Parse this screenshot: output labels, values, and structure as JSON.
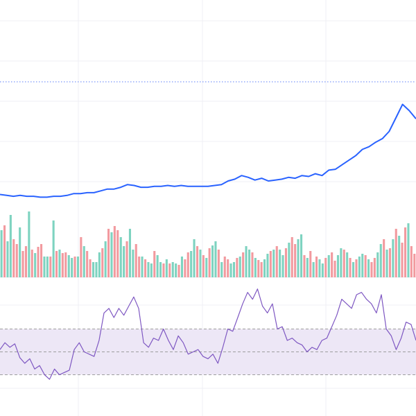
{
  "colors": {
    "background": "#ffffff",
    "grid": "#efeff4",
    "price_line": "#2962ff",
    "reference_line": "#5c7cfa",
    "volume_up": "#7ed3c0",
    "volume_down": "#f29a9f",
    "rsi_line": "#7e57c2",
    "rsi_band": "#ede7f6",
    "rsi_band_border": "#9e9e9e"
  },
  "chart_data": [
    {
      "type": "line",
      "series": [
        {
          "values": [
            55,
            54,
            53,
            54,
            53,
            53,
            52,
            52,
            53,
            53,
            54,
            56,
            56,
            57,
            57,
            59,
            61,
            61,
            63,
            66,
            65,
            63,
            63,
            64,
            64,
            65,
            64,
            65,
            64,
            64,
            64,
            64,
            65,
            66,
            70,
            72,
            76,
            74,
            71,
            73,
            70,
            71,
            72,
            74,
            73,
            76,
            75,
            78,
            76,
            82,
            83,
            88,
            93,
            98,
            105,
            108,
            113,
            117,
            125,
            140,
            155,
            148,
            139
          ]
        }
      ],
      "ylim": [
        40,
        240
      ],
      "reference_line": 180,
      "grid": true
    },
    {
      "type": "bar",
      "series": [
        {
          "values": [
            68,
            75,
            52,
            90,
            55,
            48,
            72,
            38,
            45,
            95,
            40,
            35,
            44,
            48,
            30,
            30,
            30,
            82,
            38,
            40,
            35,
            36,
            32,
            28,
            30,
            30,
            58,
            45,
            38,
            26,
            22,
            22,
            36,
            42,
            52,
            70,
            65,
            74,
            68,
            58,
            45,
            52,
            70,
            40,
            48,
            30,
            30,
            26,
            22,
            20,
            38,
            32,
            22,
            20,
            26,
            20,
            22,
            20,
            18,
            30,
            26,
            36,
            38,
            55,
            45,
            40,
            32,
            28,
            42,
            46,
            52,
            40,
            22,
            30,
            26,
            20,
            22,
            28,
            30,
            36,
            45,
            40,
            36,
            28,
            25,
            22,
            26,
            34,
            38,
            40,
            45,
            40,
            32,
            42,
            50,
            58,
            48,
            55,
            62,
            32,
            28,
            38,
            22,
            30,
            26,
            20,
            28,
            32,
            36,
            24,
            32,
            42,
            40,
            36,
            28,
            22,
            26,
            30,
            34,
            32,
            26,
            22,
            28,
            36,
            48,
            55,
            40,
            42,
            55,
            70,
            60,
            50,
            72,
            78,
            45,
            34
          ]
        }
      ],
      "up_down": [
        1,
        0,
        1,
        1,
        0,
        0,
        1,
        0,
        0,
        1,
        0,
        1,
        0,
        0,
        1,
        1,
        0,
        1,
        0,
        1,
        0,
        0,
        1,
        1,
        0,
        1,
        0,
        1,
        0,
        0,
        1,
        1,
        1,
        0,
        1,
        0,
        1,
        0,
        0,
        1,
        1,
        0,
        1,
        1,
        0,
        0,
        1,
        0,
        1,
        1,
        0,
        1,
        1,
        0,
        1,
        0,
        1,
        1,
        0,
        1,
        0,
        0,
        1,
        1,
        0,
        1,
        0,
        1,
        0,
        1,
        1,
        0,
        1,
        0,
        0,
        1,
        1,
        0,
        1,
        0,
        1,
        1,
        0,
        1,
        0,
        0,
        1,
        1,
        0,
        1,
        0,
        1,
        1,
        0,
        1,
        0,
        0,
        1,
        1,
        0,
        1,
        0,
        1,
        0,
        1,
        1,
        0,
        1,
        0,
        0,
        1,
        1,
        0,
        1,
        0,
        1,
        0,
        1,
        1,
        0,
        1,
        0,
        0,
        1,
        1,
        0,
        1,
        0,
        1,
        0,
        1,
        0,
        0,
        1,
        0,
        0
      ]
    },
    {
      "type": "line",
      "series": [
        {
          "values": [
            52,
            58,
            54,
            57,
            45,
            40,
            44,
            35,
            38,
            30,
            26,
            35,
            30,
            32,
            34,
            52,
            58,
            50,
            48,
            46,
            60,
            84,
            88,
            80,
            88,
            82,
            90,
            98,
            88,
            58,
            54,
            62,
            60,
            70,
            60,
            52,
            64,
            58,
            48,
            50,
            52,
            46,
            44,
            48,
            40,
            54,
            70,
            68,
            80,
            92,
            102,
            96,
            105,
            90,
            84,
            92,
            70,
            72,
            60,
            62,
            58,
            56,
            50,
            54,
            52,
            60,
            62,
            72,
            82,
            96,
            92,
            88,
            100,
            102,
            96,
            92,
            84,
            100,
            70,
            64,
            52,
            62,
            76,
            74,
            60
          ]
        }
      ],
      "ylim": [
        0,
        100
      ],
      "bands": [
        30,
        70
      ],
      "grid": true
    }
  ]
}
